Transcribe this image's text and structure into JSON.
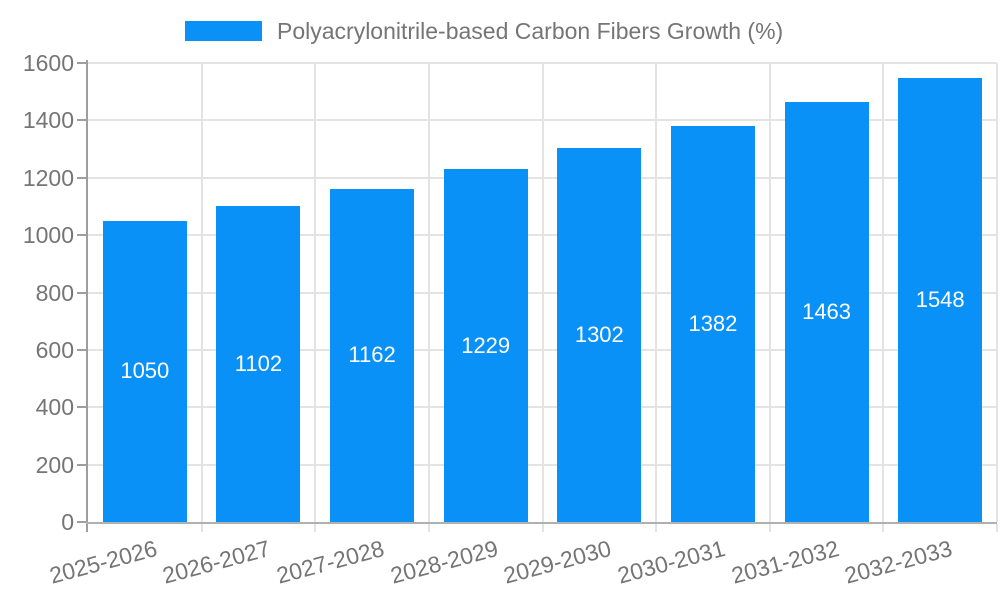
{
  "chart_data": {
    "type": "bar",
    "title": "",
    "legend_label": "Polyacrylonitrile-based Carbon Fibers Growth (%)",
    "legend_position": "top",
    "categories": [
      "2025-2026",
      "2026-2027",
      "2027-2028",
      "2028-2029",
      "2029-2030",
      "2030-2031",
      "2031-2032",
      "2032-2033"
    ],
    "values": [
      1050,
      1102,
      1162,
      1229,
      1302,
      1382,
      1463,
      1548
    ],
    "bar_labels": [
      "1050",
      "1102",
      "1162",
      "1229",
      "1302",
      "1382",
      "1463",
      "1548"
    ],
    "xlabel": "",
    "ylabel": "",
    "ylim": [
      0,
      1600
    ],
    "y_ticks": [
      0,
      200,
      400,
      600,
      800,
      1000,
      1200,
      1400,
      1600
    ],
    "grid": {
      "horizontal": true,
      "vertical": true
    },
    "colors": {
      "bar": "#0991f7",
      "tick_text": "#757575",
      "legend_text": "#757575",
      "value_label_text": "#ffffff",
      "gridline": "#e3e3e3",
      "axis_line": "#9e9e9e",
      "background": "#ffffff"
    }
  }
}
